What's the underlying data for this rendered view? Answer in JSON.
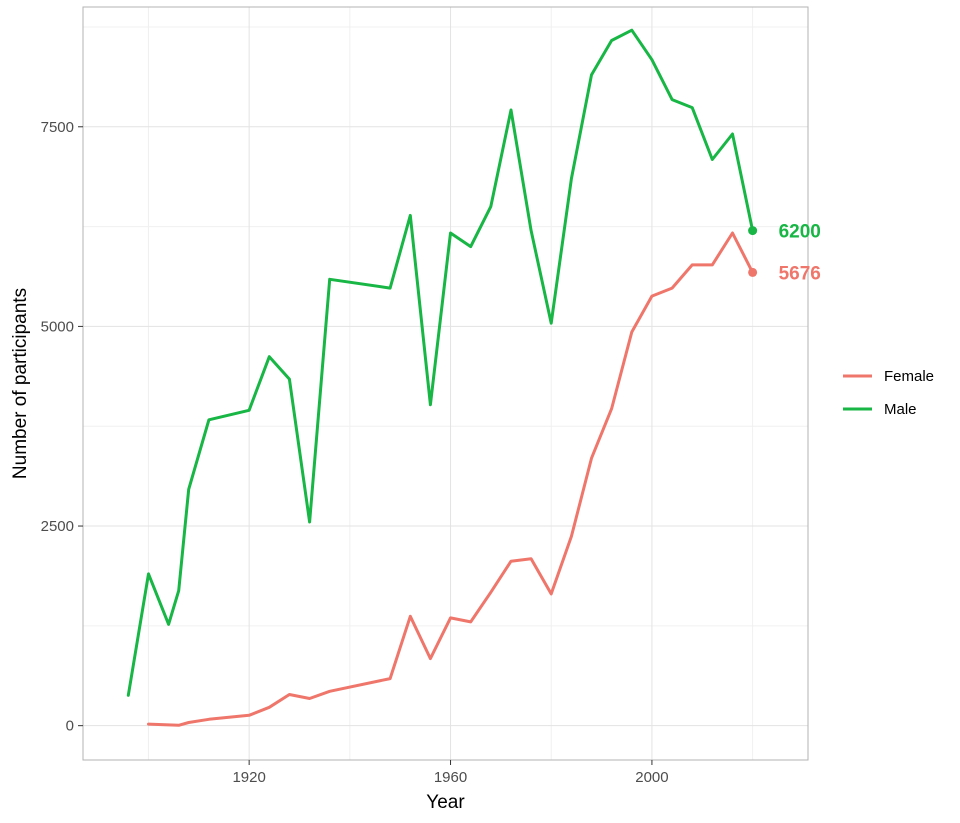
{
  "chart_data": {
    "type": "line",
    "title": "",
    "xlabel": "Year",
    "ylabel": "Number of participants",
    "xlim": [
      1887,
      2031
    ],
    "ylim": [
      -430,
      9000
    ],
    "x_ticks": [
      1920,
      1960,
      2000
    ],
    "y_ticks": [
      0,
      2500,
      5000,
      7500
    ],
    "grid": true,
    "legend_position": "right",
    "series": [
      {
        "name": "Female",
        "color": "#ef766b",
        "x": [
          1900,
          1904,
          1906,
          1908,
          1912,
          1920,
          1924,
          1928,
          1932,
          1936,
          1948,
          1952,
          1956,
          1960,
          1964,
          1968,
          1972,
          1976,
          1980,
          1984,
          1988,
          1992,
          1996,
          2000,
          2004,
          2008,
          2012,
          2016,
          2020
        ],
        "y": [
          20,
          10,
          5,
          40,
          80,
          130,
          230,
          390,
          340,
          430,
          590,
          1370,
          840,
          1350,
          1300,
          1670,
          2060,
          2090,
          1650,
          2370,
          3350,
          3970,
          4930,
          5380,
          5480,
          5770,
          5770,
          6170,
          5676
        ],
        "end_label": "5676"
      },
      {
        "name": "Male",
        "color": "#17b645",
        "x": [
          1896,
          1900,
          1904,
          1906,
          1908,
          1912,
          1920,
          1924,
          1928,
          1932,
          1936,
          1948,
          1952,
          1956,
          1960,
          1964,
          1968,
          1972,
          1976,
          1980,
          1984,
          1988,
          1992,
          1996,
          2000,
          2004,
          2008,
          2012,
          2016,
          2020
        ],
        "y": [
          380,
          1900,
          1270,
          1690,
          2960,
          3830,
          3950,
          4620,
          4340,
          2550,
          5590,
          5480,
          6390,
          4020,
          6170,
          6000,
          6500,
          7710,
          6200,
          5040,
          6850,
          8150,
          8580,
          8710,
          8340,
          7840,
          7740,
          7090,
          7410,
          6200
        ],
        "end_label": "6200"
      }
    ]
  }
}
